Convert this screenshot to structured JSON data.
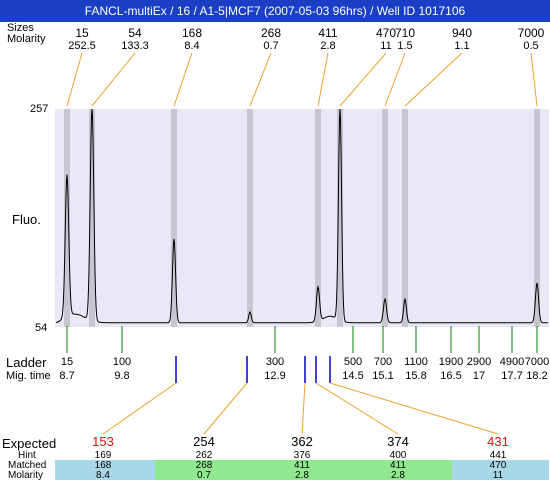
{
  "title": "FANCL-multiEx / 16 / A1-5|MCF7 (2007-05-03 96hrs) / Well ID 1017106",
  "labels": {
    "sizes": "Sizes",
    "molarity": "Molarity",
    "fluo": "Fluo.",
    "ladder": "Ladder",
    "mig_time": "Mig. time",
    "expected": "Expected",
    "hint": "Hint",
    "matched": "Matched",
    "molarity_bottom": "Molarity"
  },
  "chart_data": {
    "type": "line",
    "ylim": [
      54,
      257
    ],
    "y_ticks": [
      "257",
      "54"
    ],
    "ylabel": "Fluo.",
    "colors": {
      "plot_bg": "#e8e8f6",
      "line": "#000000",
      "peak_band": "#c6c6d0",
      "leader": "#f0a030",
      "ladder_tick": "#008000",
      "blue_tick": "#0000cc",
      "cell_blue": "#a8d8e8",
      "cell_green": "#90e890",
      "title_bg": "#1a3fc4"
    },
    "peaks": [
      {
        "size": "15",
        "molarity": "252.5",
        "height": 190
      },
      {
        "size": "54",
        "molarity": "133.3",
        "height": 257
      },
      {
        "size": "168",
        "molarity": "8.4",
        "height": 136
      },
      {
        "size": "268",
        "molarity": "0.7",
        "height": 68
      },
      {
        "size": "411",
        "molarity": "2.8",
        "height": 90
      },
      {
        "size": "470",
        "molarity": "11",
        "height": 255
      },
      {
        "size": "710",
        "molarity": "1.5",
        "height": 80
      },
      {
        "size": "940",
        "molarity": "1.1",
        "height": 80
      },
      {
        "size": "7000",
        "molarity": "0.5",
        "height": 95
      }
    ],
    "ladder": [
      {
        "size": "15",
        "time": "8.7"
      },
      {
        "size": "100",
        "time": "9.8"
      },
      {
        "size": "300",
        "time": "12.9"
      },
      {
        "size": "500",
        "time": "14.5"
      },
      {
        "size": "700",
        "time": "15.1"
      },
      {
        "size": "1100",
        "time": "15.8"
      },
      {
        "size": "1900",
        "time": "16.5"
      },
      {
        "size": "2900",
        "time": "17"
      },
      {
        "size": "4900",
        "time": "17.7"
      },
      {
        "size": "7000",
        "time": "18.2"
      }
    ],
    "expected": [
      {
        "expected": "153",
        "missing": true,
        "hint": "169",
        "matched": "168",
        "molarity": "8.4",
        "status": "blue"
      },
      {
        "expected": "254",
        "missing": false,
        "hint": "262",
        "matched": "268",
        "molarity": "0.7",
        "status": "green"
      },
      {
        "expected": "362",
        "missing": false,
        "hint": "376",
        "matched": "411",
        "molarity": "2.8",
        "status": "green"
      },
      {
        "expected": "374",
        "missing": false,
        "hint": "400",
        "matched": "411",
        "molarity": "2.8",
        "status": "green"
      },
      {
        "expected": "431",
        "missing": true,
        "hint": "441",
        "matched": "470",
        "molarity": "11",
        "status": "blue"
      }
    ]
  }
}
